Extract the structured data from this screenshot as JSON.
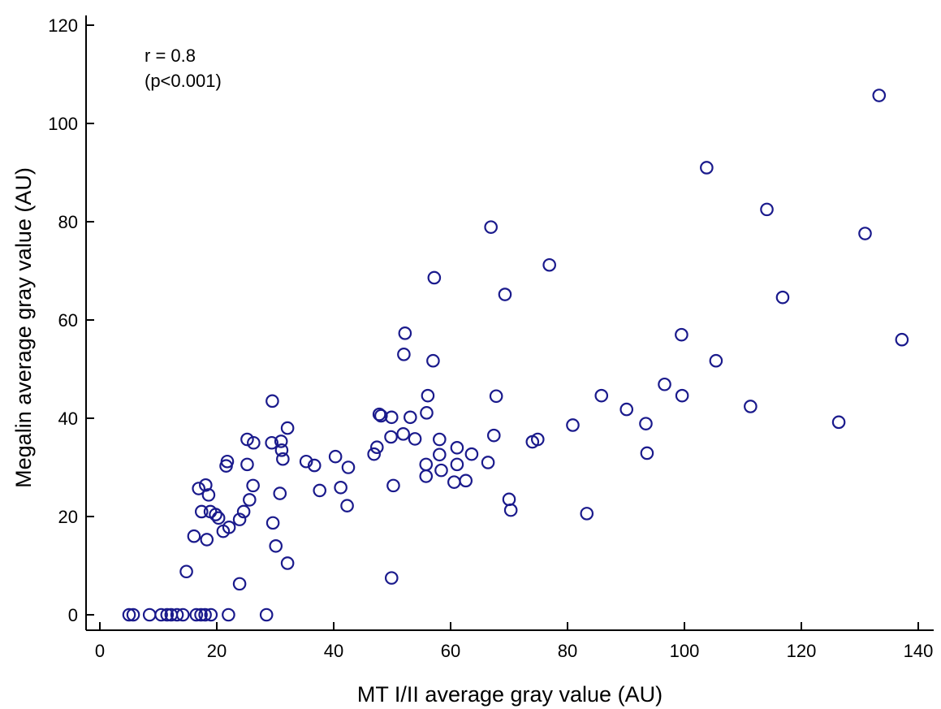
{
  "chart_data": {
    "type": "scatter",
    "title": "",
    "xlabel": "MT I/II average gray value (AU)",
    "ylabel": "Megalin average gray value (AU)",
    "xlim": [
      0,
      140
    ],
    "ylim": [
      0,
      120
    ],
    "xticks": [
      0,
      20,
      40,
      60,
      80,
      100,
      120,
      140
    ],
    "yticks": [
      0,
      20,
      40,
      60,
      80,
      100,
      120
    ],
    "grid": false,
    "marker": "open-circle",
    "marker_color": "#1a1a8c",
    "annotations": [
      "r =  0.8",
      "(p<0.001)"
    ],
    "series": [
      {
        "points": [
          [
            5,
            0
          ],
          [
            5.7,
            0
          ],
          [
            8.5,
            0
          ],
          [
            10.5,
            0
          ],
          [
            11.5,
            0
          ],
          [
            12.2,
            0
          ],
          [
            13.2,
            0
          ],
          [
            14.2,
            0
          ],
          [
            16.5,
            0
          ],
          [
            17.3,
            0
          ],
          [
            18,
            0
          ],
          [
            19,
            0
          ],
          [
            22,
            0
          ],
          [
            28.5,
            0
          ],
          [
            14.8,
            8.8
          ],
          [
            23.9,
            6.3
          ],
          [
            49.9,
            7.5
          ],
          [
            16.1,
            16
          ],
          [
            18.3,
            15.3
          ],
          [
            21.1,
            17
          ],
          [
            22.1,
            17.8
          ],
          [
            30.1,
            14
          ],
          [
            32.1,
            10.5
          ],
          [
            17.4,
            21
          ],
          [
            18.9,
            21
          ],
          [
            19.8,
            20.4
          ],
          [
            20.3,
            19.7
          ],
          [
            23.9,
            19.4
          ],
          [
            24.6,
            21
          ],
          [
            25.6,
            23.4
          ],
          [
            29.6,
            18.7
          ],
          [
            70,
            23.5
          ],
          [
            70.3,
            21.3
          ],
          [
            83.3,
            20.6
          ],
          [
            16.9,
            25.7
          ],
          [
            18.1,
            26.4
          ],
          [
            18.6,
            24.4
          ],
          [
            26.2,
            26.3
          ],
          [
            30.8,
            24.7
          ],
          [
            37.6,
            25.3
          ],
          [
            41.2,
            25.9
          ],
          [
            42.3,
            22.2
          ],
          [
            50.2,
            26.3
          ],
          [
            55.8,
            28.2
          ],
          [
            60.6,
            27
          ],
          [
            62.6,
            27.3
          ],
          [
            21.6,
            30.3
          ],
          [
            21.8,
            31.2
          ],
          [
            25.2,
            30.6
          ],
          [
            31.3,
            31.7
          ],
          [
            35.3,
            31.2
          ],
          [
            36.7,
            30.4
          ],
          [
            40.3,
            32.2
          ],
          [
            42.5,
            30
          ],
          [
            46.9,
            32.7
          ],
          [
            55.8,
            30.6
          ],
          [
            58.1,
            32.6
          ],
          [
            58.4,
            29.4
          ],
          [
            61.1,
            30.6
          ],
          [
            63.6,
            32.7
          ],
          [
            66.4,
            31
          ],
          [
            93.6,
            32.9
          ],
          [
            29.4,
            35
          ],
          [
            31.1,
            33.5
          ],
          [
            47.4,
            34.1
          ],
          [
            49.8,
            36.2
          ],
          [
            51.9,
            36.8
          ],
          [
            53.9,
            35.8
          ],
          [
            58.1,
            35.7
          ],
          [
            61.1,
            34
          ],
          [
            67.4,
            36.5
          ],
          [
            74,
            35.2
          ],
          [
            74.9,
            35.7
          ],
          [
            25.2,
            35.7
          ],
          [
            26.3,
            35
          ],
          [
            31,
            35.3
          ],
          [
            32.1,
            38
          ],
          [
            48.1,
            40.5
          ],
          [
            49.9,
            40.2
          ],
          [
            53.1,
            40.2
          ],
          [
            55.9,
            41.1
          ],
          [
            47.8,
            40.8
          ],
          [
            80.9,
            38.6
          ],
          [
            90.1,
            41.8
          ],
          [
            93.4,
            38.9
          ],
          [
            126.4,
            39.2
          ],
          [
            111.3,
            42.4
          ],
          [
            29.5,
            43.5
          ],
          [
            56.1,
            44.6
          ],
          [
            67.8,
            44.5
          ],
          [
            85.8,
            44.6
          ],
          [
            96.6,
            46.9
          ],
          [
            99.6,
            44.6
          ],
          [
            57,
            51.7
          ],
          [
            52,
            53
          ],
          [
            105.4,
            51.7
          ],
          [
            52.2,
            57.3
          ],
          [
            99.5,
            57
          ],
          [
            137.2,
            56
          ],
          [
            69.3,
            65.2
          ],
          [
            116.8,
            64.6
          ],
          [
            57.2,
            68.6
          ],
          [
            76.9,
            71.2
          ],
          [
            66.9,
            78.9
          ],
          [
            130.9,
            77.6
          ],
          [
            114.1,
            82.5
          ],
          [
            103.8,
            91
          ],
          [
            133.3,
            105.7
          ]
        ]
      }
    ]
  }
}
